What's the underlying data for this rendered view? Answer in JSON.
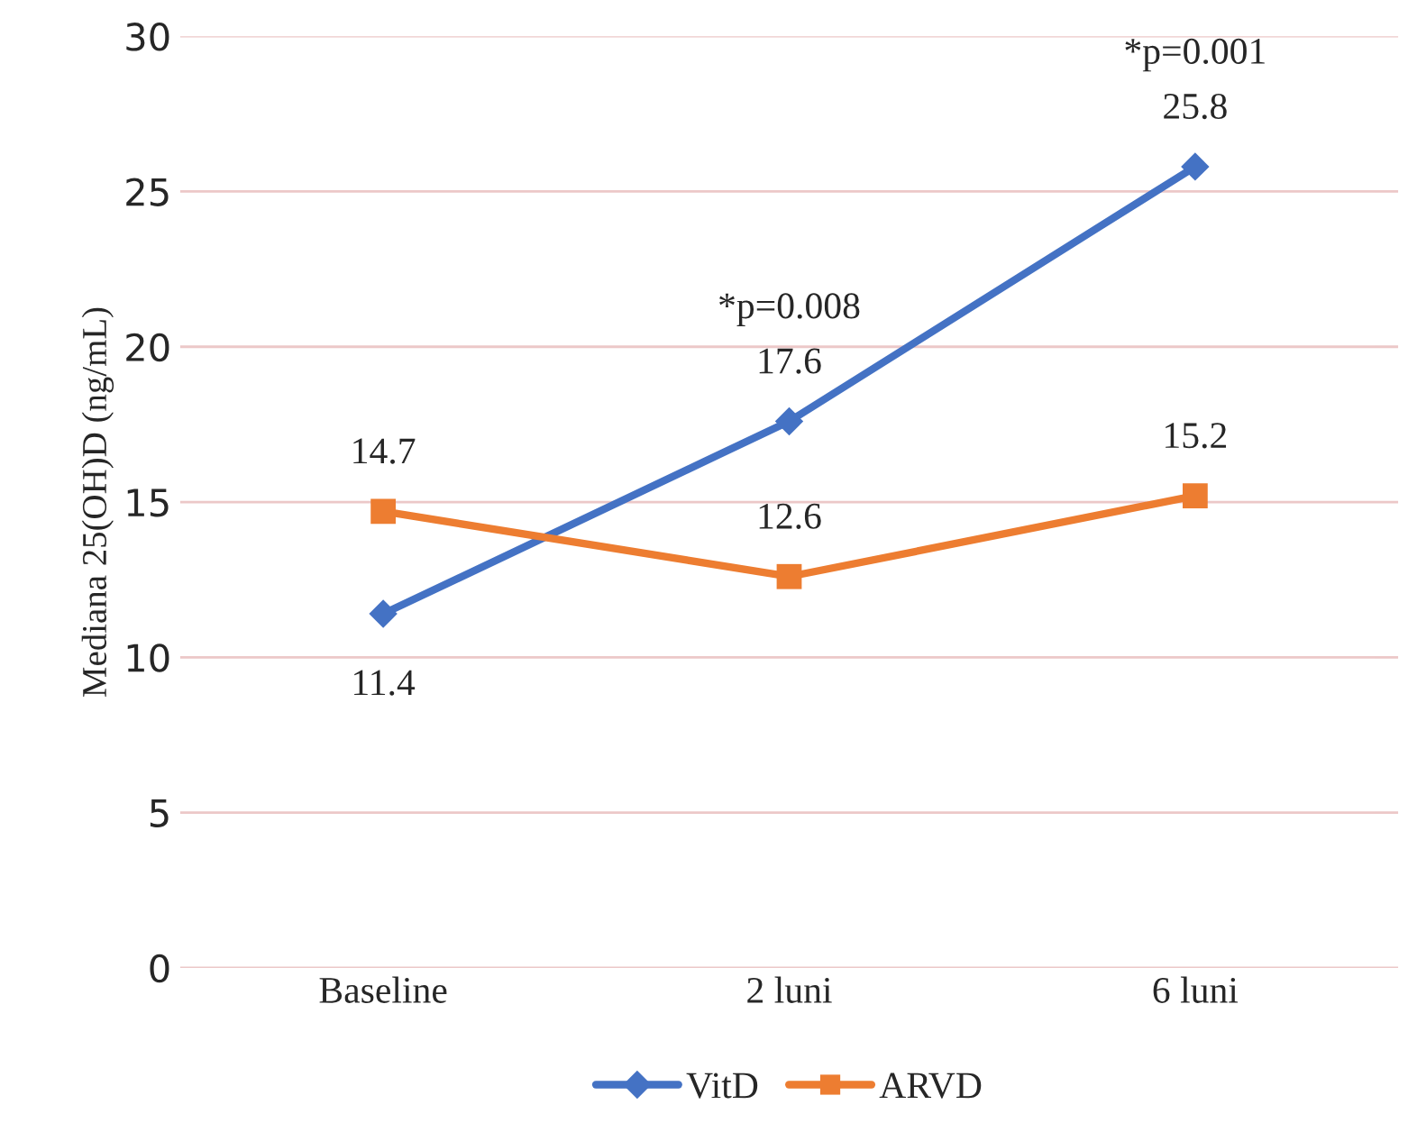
{
  "chart_data": {
    "type": "line",
    "ylabel": "Mediana 25(OH)D (ng/mL)",
    "categories": [
      "Baseline",
      "2 luni",
      "6 luni"
    ],
    "series": [
      {
        "name": "VitD",
        "color": "#4472c4",
        "values": [
          11.4,
          17.6,
          25.8
        ],
        "marker": "diamond"
      },
      {
        "name": "ARVD",
        "color": "#ed7d31",
        "values": [
          14.7,
          12.6,
          15.2
        ],
        "marker": "square"
      }
    ],
    "ylim": [
      0,
      30
    ],
    "yticks": [
      0,
      5,
      10,
      15,
      20,
      25,
      30
    ],
    "grid": "y",
    "legend": "bottom",
    "data_labels": true,
    "annotations": [
      "*p=0.008",
      "*p=0.001"
    ]
  }
}
